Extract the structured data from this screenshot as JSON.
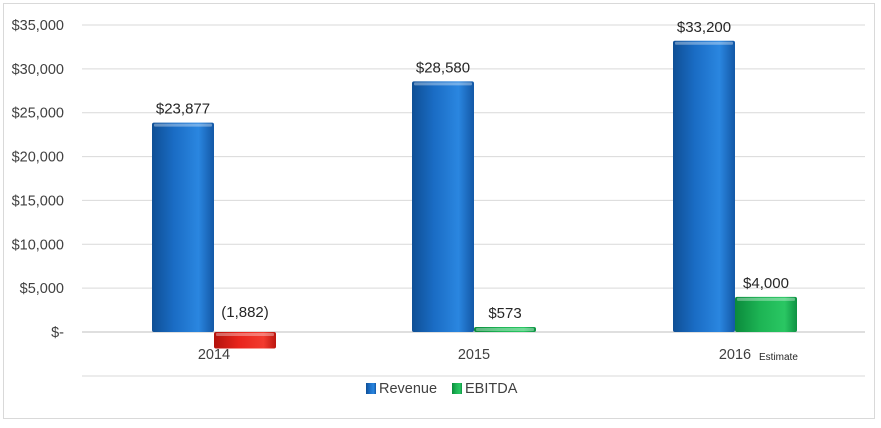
{
  "chart_data": {
    "type": "bar",
    "categories": [
      "2014",
      "2015",
      "2016"
    ],
    "category_annotations": [
      "",
      "",
      "Estimate"
    ],
    "series": [
      {
        "name": "Revenue",
        "values": [
          23877,
          28580,
          33200
        ],
        "labels": [
          "$23,877",
          "$28,580",
          "$33,200"
        ],
        "color": "#1f73c9"
      },
      {
        "name": "EBITDA",
        "values": [
          -1882,
          573,
          4000
        ],
        "labels": [
          "(1,882)",
          "$573",
          "$4,000"
        ],
        "color": "#1db454",
        "negative_color": "#e8241c"
      }
    ],
    "y_ticks": [
      {
        "value": 35000,
        "label": "$35,000"
      },
      {
        "value": 30000,
        "label": "$30,000"
      },
      {
        "value": 25000,
        "label": "$25,000"
      },
      {
        "value": 20000,
        "label": "$20,000"
      },
      {
        "value": 15000,
        "label": "$15,000"
      },
      {
        "value": 10000,
        "label": "$10,000"
      },
      {
        "value": 5000,
        "label": "$5,000"
      },
      {
        "value": 0,
        "label": "$-"
      }
    ],
    "ylim": [
      -2000,
      35000
    ],
    "grid": true,
    "legend_position": "bottom",
    "title": "",
    "xlabel": "",
    "ylabel": ""
  }
}
